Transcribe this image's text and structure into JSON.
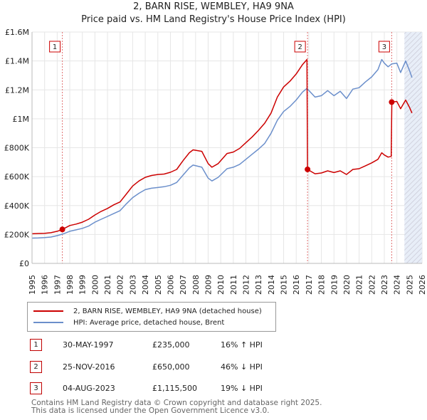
{
  "header": {
    "title": "2, BARN RISE, WEMBLEY, HA9 9NA",
    "subtitle": "Price paid vs. HM Land Registry's House Price Index (HPI)"
  },
  "colors": {
    "property": "#cc0000",
    "hpi": "#6b8fcb",
    "vline": "#e07070",
    "hatch": "#c9c9d6",
    "future_bg": "#e8eef8"
  },
  "chart_data": {
    "type": "line",
    "title": "2, BARN RISE, WEMBLEY, HA9 9NA",
    "subtitle": "Price paid vs. HM Land Registry's House Price Index (HPI)",
    "xlabel": "",
    "ylabel": "",
    "xlim": [
      1995,
      2026
    ],
    "ylim": [
      0,
      1600000
    ],
    "grid": true,
    "x_ticks": [
      1995,
      1996,
      1997,
      1998,
      1999,
      2000,
      2001,
      2002,
      2003,
      2004,
      2005,
      2006,
      2007,
      2008,
      2009,
      2010,
      2011,
      2012,
      2013,
      2014,
      2015,
      2016,
      2017,
      2018,
      2019,
      2020,
      2021,
      2022,
      2023,
      2024,
      2025,
      2026
    ],
    "y_ticks": [
      {
        "value": 0,
        "label": "£0"
      },
      {
        "value": 200000,
        "label": "£200K"
      },
      {
        "value": 400000,
        "label": "£400K"
      },
      {
        "value": 600000,
        "label": "£600K"
      },
      {
        "value": 800000,
        "label": "£800K"
      },
      {
        "value": 1000000,
        "label": "£1M"
      },
      {
        "value": 1200000,
        "label": "£1.2M"
      },
      {
        "value": 1400000,
        "label": "£1.4M"
      },
      {
        "value": 1600000,
        "label": "£1.6M"
      }
    ],
    "future_shade_from": 2024.6,
    "series": [
      {
        "name": "2, BARN RISE, WEMBLEY, HA9 9NA (detached house)",
        "color": "#cc0000",
        "points": [
          [
            1995.0,
            205000
          ],
          [
            1995.5,
            207000
          ],
          [
            1996.0,
            208000
          ],
          [
            1996.5,
            212000
          ],
          [
            1997.0,
            222000
          ],
          [
            1997.41,
            235000
          ],
          [
            1998.0,
            262000
          ],
          [
            1998.5,
            272000
          ],
          [
            1999.0,
            285000
          ],
          [
            1999.5,
            305000
          ],
          [
            2000.0,
            335000
          ],
          [
            2000.5,
            360000
          ],
          [
            2001.0,
            380000
          ],
          [
            2001.5,
            405000
          ],
          [
            2002.0,
            425000
          ],
          [
            2002.5,
            480000
          ],
          [
            2003.0,
            535000
          ],
          [
            2003.5,
            570000
          ],
          [
            2004.0,
            595000
          ],
          [
            2004.5,
            608000
          ],
          [
            2005.0,
            615000
          ],
          [
            2005.5,
            618000
          ],
          [
            2006.0,
            630000
          ],
          [
            2006.5,
            650000
          ],
          [
            2007.0,
            710000
          ],
          [
            2007.5,
            765000
          ],
          [
            2007.8,
            785000
          ],
          [
            2008.5,
            775000
          ],
          [
            2009.0,
            690000
          ],
          [
            2009.3,
            665000
          ],
          [
            2009.8,
            690000
          ],
          [
            2010.5,
            760000
          ],
          [
            2011.0,
            770000
          ],
          [
            2011.5,
            795000
          ],
          [
            2012.0,
            835000
          ],
          [
            2012.5,
            875000
          ],
          [
            2013.0,
            920000
          ],
          [
            2013.5,
            970000
          ],
          [
            2014.0,
            1040000
          ],
          [
            2014.5,
            1150000
          ],
          [
            2015.0,
            1220000
          ],
          [
            2015.5,
            1260000
          ],
          [
            2016.0,
            1310000
          ],
          [
            2016.5,
            1375000
          ],
          [
            2016.85,
            1410000
          ],
          [
            2016.9,
            650000
          ],
          [
            2017.5,
            620000
          ],
          [
            2018.0,
            625000
          ],
          [
            2018.5,
            640000
          ],
          [
            2019.0,
            628000
          ],
          [
            2019.5,
            640000
          ],
          [
            2020.0,
            615000
          ],
          [
            2020.5,
            650000
          ],
          [
            2021.0,
            655000
          ],
          [
            2021.5,
            675000
          ],
          [
            2022.0,
            695000
          ],
          [
            2022.5,
            720000
          ],
          [
            2022.8,
            765000
          ],
          [
            2023.0,
            750000
          ],
          [
            2023.3,
            735000
          ],
          [
            2023.55,
            740000
          ],
          [
            2023.6,
            1115500
          ],
          [
            2024.0,
            1120000
          ],
          [
            2024.3,
            1070000
          ],
          [
            2024.7,
            1130000
          ],
          [
            2025.0,
            1080000
          ],
          [
            2025.2,
            1040000
          ]
        ]
      },
      {
        "name": "HPI: Average price, detached house, Brent",
        "color": "#6b8fcb",
        "points": [
          [
            1995.0,
            175000
          ],
          [
            1995.5,
            176000
          ],
          [
            1996.0,
            178000
          ],
          [
            1996.5,
            182000
          ],
          [
            1997.0,
            192000
          ],
          [
            1997.5,
            205000
          ],
          [
            1998.0,
            222000
          ],
          [
            1998.5,
            232000
          ],
          [
            1999.0,
            242000
          ],
          [
            1999.5,
            258000
          ],
          [
            2000.0,
            285000
          ],
          [
            2000.5,
            305000
          ],
          [
            2001.0,
            325000
          ],
          [
            2001.5,
            345000
          ],
          [
            2002.0,
            365000
          ],
          [
            2002.5,
            412000
          ],
          [
            2003.0,
            455000
          ],
          [
            2003.5,
            485000
          ],
          [
            2004.0,
            510000
          ],
          [
            2004.5,
            520000
          ],
          [
            2005.0,
            525000
          ],
          [
            2005.5,
            530000
          ],
          [
            2006.0,
            540000
          ],
          [
            2006.5,
            560000
          ],
          [
            2007.0,
            610000
          ],
          [
            2007.5,
            660000
          ],
          [
            2007.8,
            680000
          ],
          [
            2008.5,
            665000
          ],
          [
            2009.0,
            590000
          ],
          [
            2009.3,
            570000
          ],
          [
            2009.8,
            595000
          ],
          [
            2010.5,
            655000
          ],
          [
            2011.0,
            665000
          ],
          [
            2011.5,
            685000
          ],
          [
            2012.0,
            720000
          ],
          [
            2012.5,
            755000
          ],
          [
            2013.0,
            790000
          ],
          [
            2013.5,
            830000
          ],
          [
            2014.0,
            900000
          ],
          [
            2014.5,
            990000
          ],
          [
            2015.0,
            1050000
          ],
          [
            2015.5,
            1085000
          ],
          [
            2016.0,
            1130000
          ],
          [
            2016.5,
            1185000
          ],
          [
            2016.85,
            1210000
          ],
          [
            2017.5,
            1150000
          ],
          [
            2018.0,
            1160000
          ],
          [
            2018.5,
            1195000
          ],
          [
            2019.0,
            1160000
          ],
          [
            2019.5,
            1190000
          ],
          [
            2020.0,
            1140000
          ],
          [
            2020.5,
            1205000
          ],
          [
            2021.0,
            1215000
          ],
          [
            2021.5,
            1255000
          ],
          [
            2022.0,
            1290000
          ],
          [
            2022.5,
            1340000
          ],
          [
            2022.8,
            1410000
          ],
          [
            2023.0,
            1385000
          ],
          [
            2023.3,
            1360000
          ],
          [
            2023.6,
            1380000
          ],
          [
            2024.0,
            1385000
          ],
          [
            2024.3,
            1320000
          ],
          [
            2024.7,
            1400000
          ],
          [
            2025.0,
            1335000
          ],
          [
            2025.2,
            1285000
          ]
        ]
      }
    ],
    "sales": [
      {
        "num": "1",
        "x": 1997.41,
        "value": 235000
      },
      {
        "num": "2",
        "x": 2016.9,
        "value": 650000
      },
      {
        "num": "3",
        "x": 2023.59,
        "value": 1115500
      }
    ]
  },
  "legend": {
    "property_label": "2, BARN RISE, WEMBLEY, HA9 9NA (detached house)",
    "hpi_label": "HPI: Average price, detached house, Brent"
  },
  "transactions": [
    {
      "num": "1",
      "date": "30-MAY-1997",
      "price": "£235,000",
      "hpi": "16% ↑ HPI"
    },
    {
      "num": "2",
      "date": "25-NOV-2016",
      "price": "£650,000",
      "hpi": "46% ↓ HPI"
    },
    {
      "num": "3",
      "date": "04-AUG-2023",
      "price": "£1,115,500",
      "hpi": "19% ↓ HPI"
    }
  ],
  "footer": {
    "line1": "Contains HM Land Registry data © Crown copyright and database right 2025.",
    "line2": "This data is licensed under the Open Government Licence v3.0."
  }
}
